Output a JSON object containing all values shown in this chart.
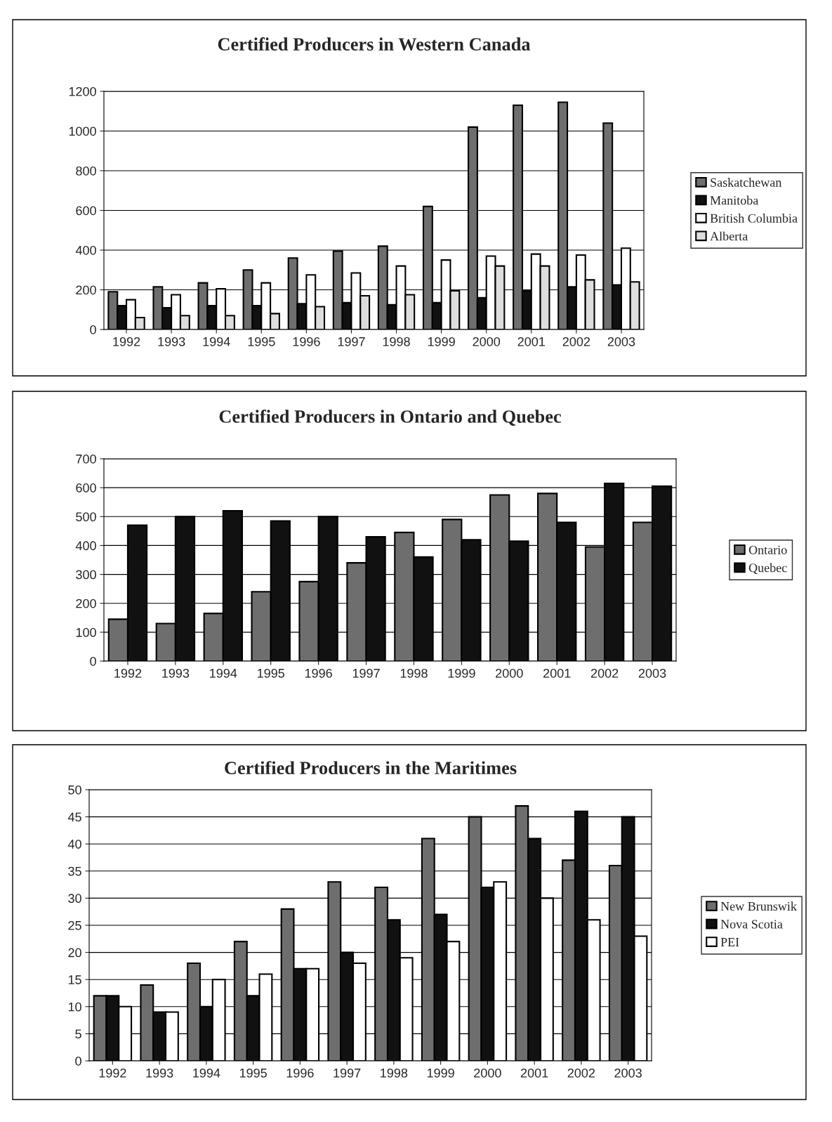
{
  "chart_data": [
    {
      "type": "bar",
      "title": "Certified Producers in Western Canada",
      "categories": [
        "1992",
        "1993",
        "1994",
        "1995",
        "1996",
        "1997",
        "1998",
        "1999",
        "2000",
        "2001",
        "2002",
        "2003"
      ],
      "series": [
        {
          "name": "Saskatchewan",
          "color": "#6e6e6e",
          "values": [
            190,
            215,
            235,
            300,
            360,
            395,
            420,
            620,
            1020,
            1130,
            1145,
            1040
          ]
        },
        {
          "name": "Manitoba",
          "color": "#111111",
          "values": [
            120,
            110,
            120,
            120,
            130,
            135,
            125,
            135,
            160,
            195,
            215,
            225
          ]
        },
        {
          "name": "British Columbia",
          "color": "#ffffff",
          "values": [
            150,
            175,
            205,
            235,
            275,
            285,
            320,
            350,
            370,
            380,
            375,
            410
          ]
        },
        {
          "name": "Alberta",
          "color": "#dddddd",
          "values": [
            60,
            70,
            70,
            80,
            115,
            170,
            175,
            195,
            320,
            320,
            250,
            240
          ]
        }
      ],
      "ylim": [
        0,
        1200
      ],
      "yticks": [
        0,
        200,
        400,
        600,
        800,
        1000,
        1200
      ],
      "grid": "y",
      "legend": "right"
    },
    {
      "type": "bar",
      "title": "Certified Producers in Ontario and Quebec",
      "categories": [
        "1992",
        "1993",
        "1994",
        "1995",
        "1996",
        "1997",
        "1998",
        "1999",
        "2000",
        "2001",
        "2002",
        "2003"
      ],
      "series": [
        {
          "name": "Ontario",
          "color": "#6e6e6e",
          "values": [
            145,
            130,
            165,
            240,
            275,
            340,
            445,
            490,
            575,
            580,
            395,
            480
          ]
        },
        {
          "name": "Quebec",
          "color": "#111111",
          "values": [
            470,
            500,
            520,
            485,
            500,
            430,
            360,
            420,
            415,
            480,
            615,
            605
          ]
        }
      ],
      "ylim": [
        0,
        700
      ],
      "yticks": [
        0,
        100,
        200,
        300,
        400,
        500,
        600,
        700
      ],
      "grid": "y",
      "legend": "right"
    },
    {
      "type": "bar",
      "title": "Certified Producers in the Maritimes",
      "categories": [
        "1992",
        "1993",
        "1994",
        "1995",
        "1996",
        "1997",
        "1998",
        "1999",
        "2000",
        "2001",
        "2002",
        "2003"
      ],
      "series": [
        {
          "name": "New Brunswik",
          "color": "#6e6e6e",
          "values": [
            12,
            14,
            18,
            22,
            28,
            33,
            32,
            41,
            45,
            47,
            37,
            36
          ]
        },
        {
          "name": "Nova Scotia",
          "color": "#111111",
          "values": [
            12,
            9,
            10,
            12,
            17,
            20,
            26,
            27,
            32,
            41,
            46,
            45
          ]
        },
        {
          "name": "PEI",
          "color": "#ffffff",
          "values": [
            10,
            9,
            15,
            16,
            17,
            18,
            19,
            22,
            33,
            30,
            26,
            23
          ]
        }
      ],
      "ylim": [
        0,
        50
      ],
      "yticks": [
        0,
        5,
        10,
        15,
        20,
        25,
        30,
        35,
        40,
        45,
        50
      ],
      "grid": "y",
      "legend": "right"
    }
  ]
}
